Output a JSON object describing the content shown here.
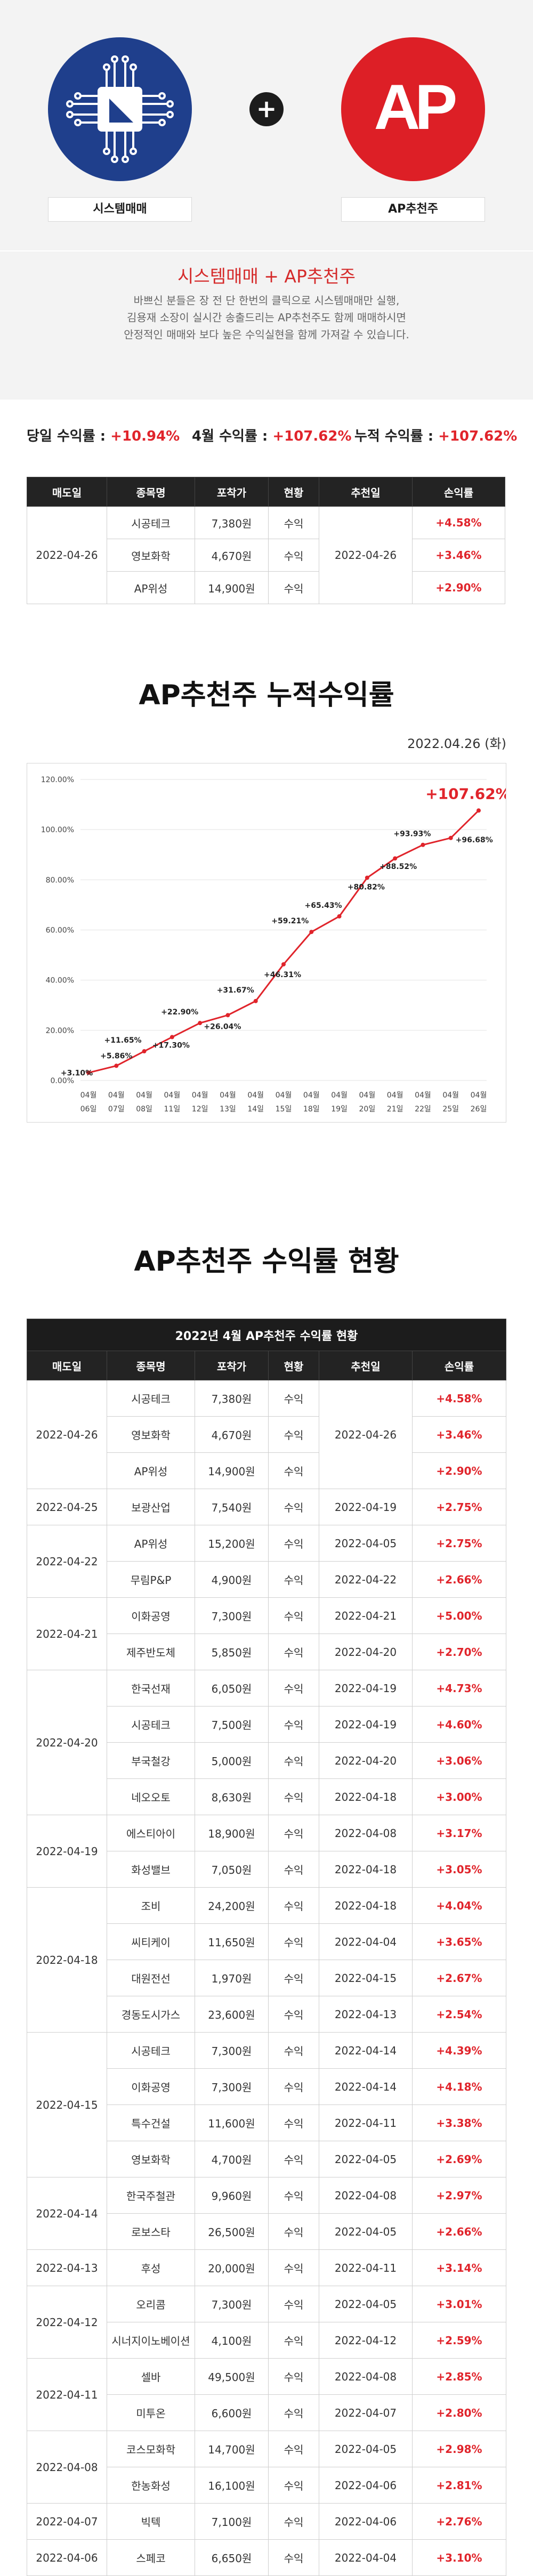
{
  "logos": {
    "left_label": "시스템매매",
    "right_label": "AP추천주",
    "right_text": "AP",
    "plus": "+"
  },
  "intro": {
    "title": "시스템매매 + AP추천주",
    "line1": "바쁘신 분들은 장 전 단 한번의 클릭으로 시스템매매만 실행,",
    "line2": "김용재 소장이 실시간 송출드리는 AP추천주도 함께 매매하시면",
    "line3": "안정적인 매매와 보다 높은 수익실현을 함께 가져갈 수 있습니다."
  },
  "rates": {
    "daily_label": "당일 수익률 : ",
    "daily_value": "+10.94%",
    "month_label": "4월 수익률 : ",
    "month_value": "+107.62%",
    "cum_label": "누적 수익률 : ",
    "cum_value": "+107.62%"
  },
  "headers": [
    "매도일",
    "종목명",
    "포착가",
    "현황",
    "추천일",
    "손익률"
  ],
  "today_table": {
    "sell_date": "2022-04-26",
    "rec_date": "2022-04-26",
    "rows": [
      {
        "name": "시공테크",
        "price": "7,380원",
        "status": "수익",
        "rate": "+4.58%"
      },
      {
        "name": "영보화학",
        "price": "4,670원",
        "status": "수익",
        "rate": "+3.46%"
      },
      {
        "name": "AP위성",
        "price": "14,900원",
        "status": "수익",
        "rate": "+2.90%"
      }
    ]
  },
  "chart_section": {
    "title": "AP추천주 누적수익률",
    "date": "2022.04.26 (화)"
  },
  "chart_data": {
    "type": "line",
    "x": [
      "04월 06일",
      "04월 07일",
      "04월 08일",
      "04월 11일",
      "04월 12일",
      "04월 13일",
      "04월 14일",
      "04월 15일",
      "04월 18일",
      "04월 19일",
      "04월 20일",
      "04월 21일",
      "04월 22일",
      "04월 25일",
      "04월 26일"
    ],
    "values": [
      3.1,
      5.86,
      11.65,
      17.3,
      22.9,
      26.04,
      31.67,
      46.31,
      59.21,
      65.43,
      80.82,
      88.52,
      93.93,
      96.68,
      107.62
    ],
    "labels": [
      "+3.10%",
      "+5.86%",
      "+11.65%",
      "+17.30%",
      "+22.90%",
      "+26.04%",
      "+31.67%",
      "+46.31%",
      "+59.21%",
      "+65.43%",
      "+80.82%",
      "+88.52%",
      "+93.93%",
      "+96.68%",
      "+107.62%"
    ],
    "yticks": [
      "0.00%",
      "20.00%",
      "40.00%",
      "60.00%",
      "80.00%",
      "100.00%",
      "120.00%"
    ],
    "ylim": [
      0,
      120
    ],
    "line_color": "#e0242b",
    "grid": true
  },
  "status_section": {
    "title": "AP추천주 수익률 현황",
    "table_caption": "2022년 4월 AP추천주 수익률 현황"
  },
  "groups": [
    {
      "sell": "2022-04-26",
      "rows": [
        {
          "name": "시공테크",
          "price": "7,380원",
          "status": "수익",
          "rec": "2022-04-26",
          "rate": "+4.58%"
        },
        {
          "name": "영보화학",
          "price": "4,670원",
          "status": "수익",
          "rec": "",
          "rate": "+3.46%"
        },
        {
          "name": "AP위성",
          "price": "14,900원",
          "status": "수익",
          "rec": "",
          "rate": "+2.90%"
        }
      ]
    },
    {
      "sell": "2022-04-25",
      "rows": [
        {
          "name": "보광산업",
          "price": "7,540원",
          "status": "수익",
          "rec": "2022-04-19",
          "rate": "+2.75%"
        }
      ]
    },
    {
      "sell": "2022-04-22",
      "rows": [
        {
          "name": "AP위성",
          "price": "15,200원",
          "status": "수익",
          "rec": "2022-04-05",
          "rate": "+2.75%"
        },
        {
          "name": "무림P&P",
          "price": "4,900원",
          "status": "수익",
          "rec": "2022-04-22",
          "rate": "+2.66%"
        }
      ]
    },
    {
      "sell": "2022-04-21",
      "rows": [
        {
          "name": "이화공영",
          "price": "7,300원",
          "status": "수익",
          "rec": "2022-04-21",
          "rate": "+5.00%"
        },
        {
          "name": "제주반도체",
          "price": "5,850원",
          "status": "수익",
          "rec": "2022-04-20",
          "rate": "+2.70%"
        }
      ]
    },
    {
      "sell": "2022-04-20",
      "rows": [
        {
          "name": "한국선재",
          "price": "6,050원",
          "status": "수익",
          "rec": "2022-04-19",
          "rate": "+4.73%"
        },
        {
          "name": "시공테크",
          "price": "7,500원",
          "status": "수익",
          "rec": "2022-04-19",
          "rate": "+4.60%"
        },
        {
          "name": "부국철강",
          "price": "5,000원",
          "status": "수익",
          "rec": "2022-04-20",
          "rate": "+3.06%"
        },
        {
          "name": "네오오토",
          "price": "8,630원",
          "status": "수익",
          "rec": "2022-04-18",
          "rate": "+3.00%"
        }
      ]
    },
    {
      "sell": "2022-04-19",
      "rows": [
        {
          "name": "에스티아이",
          "price": "18,900원",
          "status": "수익",
          "rec": "2022-04-08",
          "rate": "+3.17%"
        },
        {
          "name": "화성밸브",
          "price": "7,050원",
          "status": "수익",
          "rec": "2022-04-18",
          "rate": "+3.05%"
        }
      ]
    },
    {
      "sell": "2022-04-18",
      "rows": [
        {
          "name": "조비",
          "price": "24,200원",
          "status": "수익",
          "rec": "2022-04-18",
          "rate": "+4.04%"
        },
        {
          "name": "씨티케이",
          "price": "11,650원",
          "status": "수익",
          "rec": "2022-04-04",
          "rate": "+3.65%"
        },
        {
          "name": "대원전선",
          "price": "1,970원",
          "status": "수익",
          "rec": "2022-04-15",
          "rate": "+2.67%"
        },
        {
          "name": "경동도시가스",
          "price": "23,600원",
          "status": "수익",
          "rec": "2022-04-13",
          "rate": "+2.54%"
        }
      ]
    },
    {
      "sell": "2022-04-15",
      "rows": [
        {
          "name": "시공테크",
          "price": "7,300원",
          "status": "수익",
          "rec": "2022-04-14",
          "rate": "+4.39%"
        },
        {
          "name": "이화공영",
          "price": "7,300원",
          "status": "수익",
          "rec": "2022-04-14",
          "rate": "+4.18%"
        },
        {
          "name": "특수건설",
          "price": "11,600원",
          "status": "수익",
          "rec": "2022-04-11",
          "rate": "+3.38%"
        },
        {
          "name": "영보화학",
          "price": "4,700원",
          "status": "수익",
          "rec": "2022-04-05",
          "rate": "+2.69%"
        }
      ]
    },
    {
      "sell": "2022-04-14",
      "rows": [
        {
          "name": "한국주철관",
          "price": "9,960원",
          "status": "수익",
          "rec": "2022-04-08",
          "rate": "+2.97%"
        },
        {
          "name": "로보스타",
          "price": "26,500원",
          "status": "수익",
          "rec": "2022-04-05",
          "rate": "+2.66%"
        }
      ]
    },
    {
      "sell": "2022-04-13",
      "rows": [
        {
          "name": "후성",
          "price": "20,000원",
          "status": "수익",
          "rec": "2022-04-11",
          "rate": "+3.14%"
        }
      ]
    },
    {
      "sell": "2022-04-12",
      "rows": [
        {
          "name": "오리콤",
          "price": "7,300원",
          "status": "수익",
          "rec": "2022-04-05",
          "rate": "+3.01%"
        },
        {
          "name": "시너지이노베이션",
          "price": "4,100원",
          "status": "수익",
          "rec": "2022-04-12",
          "rate": "+2.59%"
        }
      ]
    },
    {
      "sell": "2022-04-11",
      "rows": [
        {
          "name": "셀바",
          "price": "49,500원",
          "status": "수익",
          "rec": "2022-04-08",
          "rate": "+2.85%"
        },
        {
          "name": "미투온",
          "price": "6,600원",
          "status": "수익",
          "rec": "2022-04-07",
          "rate": "+2.80%"
        }
      ]
    },
    {
      "sell": "2022-04-08",
      "rows": [
        {
          "name": "코스모화학",
          "price": "14,700원",
          "status": "수익",
          "rec": "2022-04-05",
          "rate": "+2.98%"
        },
        {
          "name": "한농화성",
          "price": "16,100원",
          "status": "수익",
          "rec": "2022-04-06",
          "rate": "+2.81%"
        }
      ]
    },
    {
      "sell": "2022-04-07",
      "rows": [
        {
          "name": "빅텍",
          "price": "7,100원",
          "status": "수익",
          "rec": "2022-04-06",
          "rate": "+2.76%"
        }
      ]
    },
    {
      "sell": "2022-04-06",
      "rows": [
        {
          "name": "스페코",
          "price": "6,650원",
          "status": "수익",
          "rec": "2022-04-04",
          "rate": "+3.10%"
        }
      ]
    }
  ]
}
